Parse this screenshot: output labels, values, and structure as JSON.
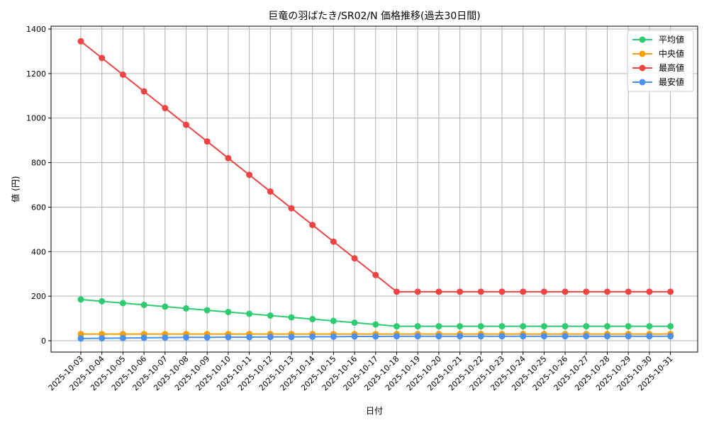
{
  "chart_data": {
    "type": "line",
    "title": "巨竜の羽ばたき/SR02/N 価格推移(過去30日間)",
    "xlabel": "日付",
    "ylabel": "値 (円)",
    "ylim": [
      0,
      1400
    ],
    "yticks": [
      0,
      200,
      400,
      600,
      800,
      1000,
      1200,
      1400
    ],
    "grid": true,
    "legend_position": "top-right",
    "categories": [
      "2025-10-03",
      "2025-10-04",
      "2025-10-05",
      "2025-10-06",
      "2025-10-07",
      "2025-10-08",
      "2025-10-09",
      "2025-10-10",
      "2025-10-11",
      "2025-10-12",
      "2025-10-13",
      "2025-10-14",
      "2025-10-15",
      "2025-10-16",
      "2025-10-17",
      "2025-10-18",
      "2025-10-19",
      "2025-10-20",
      "2025-10-21",
      "2025-10-22",
      "2025-10-23",
      "2025-10-24",
      "2025-10-25",
      "2025-10-26",
      "2025-10-27",
      "2025-10-28",
      "2025-10-29",
      "2025-10-30",
      "2025-10-31"
    ],
    "series": [
      {
        "name": "平均値",
        "color": "#2ecc71",
        "values": [
          185,
          177,
          169,
          161,
          153,
          145,
          137,
          129,
          121,
          113,
          105,
          97,
          89,
          81,
          73,
          65,
          65,
          65,
          65,
          65,
          65,
          65,
          65,
          65,
          65,
          65,
          65,
          65,
          65
        ]
      },
      {
        "name": "中央値",
        "color": "#f5a00b",
        "values": [
          30,
          30,
          30,
          30,
          30,
          30,
          30,
          30,
          30,
          30,
          30,
          30,
          30,
          30,
          30,
          30,
          30,
          30,
          30,
          30,
          30,
          30,
          30,
          30,
          30,
          30,
          30,
          30,
          30
        ]
      },
      {
        "name": "最高値",
        "color": "#ef4444",
        "values": [
          1345,
          1270,
          1195,
          1120,
          1045,
          970,
          895,
          820,
          745,
          670,
          595,
          520,
          445,
          370,
          295,
          220,
          220,
          220,
          220,
          220,
          220,
          220,
          220,
          220,
          220,
          220,
          220,
          220,
          220
        ]
      },
      {
        "name": "最安値",
        "color": "#4a90f0",
        "values": [
          10,
          11,
          12,
          13,
          14,
          15,
          15,
          16,
          16,
          17,
          17,
          18,
          18,
          19,
          19,
          20,
          20,
          20,
          20,
          20,
          20,
          20,
          20,
          20,
          20,
          20,
          20,
          20,
          20
        ]
      }
    ]
  }
}
